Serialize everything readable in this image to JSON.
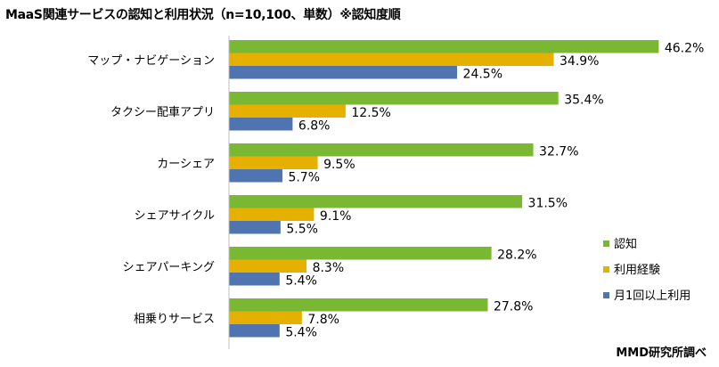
{
  "chart_data": {
    "type": "bar",
    "orientation": "horizontal",
    "title": "MaaS関連サービスの認知と利用状況（n=10,100、単数）※認知度順",
    "categories": [
      "マップ・ナビゲーション",
      "タクシー配車アプリ",
      "カーシェア",
      "シェアサイクル",
      "シェアパーキング",
      "相乗りサービス"
    ],
    "series": [
      {
        "name": "認知",
        "color": "#7ab833",
        "values": [
          46.2,
          35.4,
          32.7,
          31.5,
          28.2,
          27.8
        ]
      },
      {
        "name": "利用経験",
        "color": "#e6b000",
        "values": [
          34.9,
          12.5,
          9.5,
          9.1,
          8.3,
          7.8
        ]
      },
      {
        "name": "月1回以上利用",
        "color": "#4f74b0",
        "values": [
          24.5,
          6.8,
          5.7,
          5.5,
          5.4,
          5.4
        ]
      }
    ],
    "value_suffix": "%",
    "xlim": [
      0,
      50
    ],
    "grid": false,
    "legend_position": "right"
  },
  "credit": "MMD研究所調べ"
}
